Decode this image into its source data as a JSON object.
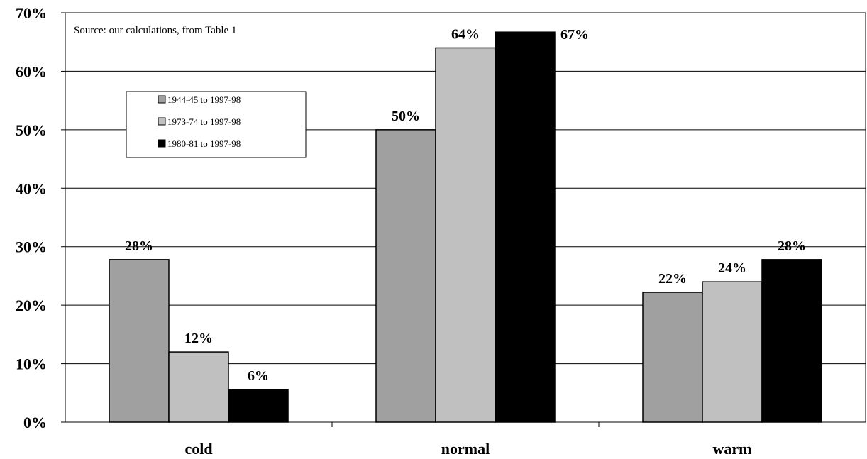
{
  "chart_data": {
    "type": "bar",
    "categories": [
      "cold",
      "normal",
      "warm"
    ],
    "series": [
      {
        "name": "1944-45 to 1997-98",
        "values": [
          28,
          50,
          22
        ],
        "labels": [
          "28%",
          "50%",
          "22%"
        ],
        "color": "#a0a0a0"
      },
      {
        "name": "1973-74 to 1997-98",
        "values": [
          12,
          64,
          24
        ],
        "labels": [
          "12%",
          "64%",
          "24%"
        ],
        "color": "#c0c0c0"
      },
      {
        "name": "1980-81 to 1997-98",
        "values": [
          6,
          67,
          28
        ],
        "labels": [
          "6%",
          "67%",
          "28%"
        ],
        "color": "#000000"
      }
    ],
    "bar_heights": [
      [
        27.8,
        50,
        22.2
      ],
      [
        12,
        64,
        24
      ],
      [
        5.6,
        66.7,
        27.8
      ]
    ],
    "ylim": [
      0,
      70
    ],
    "yticks": [
      0,
      10,
      20,
      30,
      40,
      50,
      60,
      70
    ],
    "ytick_labels": [
      "0%",
      "10%",
      "20%",
      "30%",
      "40%",
      "50%",
      "60%",
      "70%"
    ],
    "grid": true,
    "legend_position": "upper-left",
    "annotation": "Source: our calculations, from Table 1",
    "title": "",
    "xlabel": "",
    "ylabel": ""
  }
}
